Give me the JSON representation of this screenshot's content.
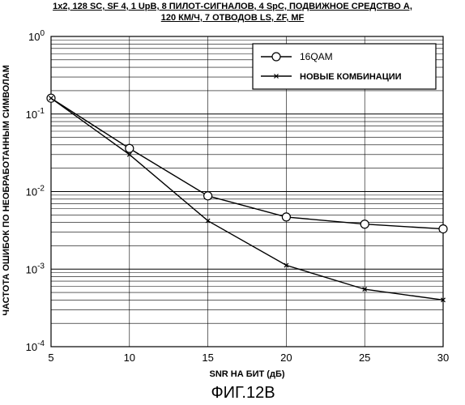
{
  "chart_data": {
    "type": "line",
    "title_line1": "1x2, 128 SC, SF 4, 1 UpB, 8 ПИЛОТ-СИГНАЛОВ, 4 SpC, ПОДВИЖНОЕ СРЕДСТВО A,",
    "title_line2": "120 КМ/Ч, 7 ОТВОДОВ LS, ZF, MF",
    "xlabel": "SNR НА БИТ (дБ)",
    "ylabel": "ЧАСТОТА ОШИБОК ПО НЕОБРАБОТАННЫМ СИМВОЛАМ",
    "xlim": [
      5,
      30
    ],
    "ylim": [
      0.0001,
      1
    ],
    "yscale": "log",
    "x_ticks": [
      "5",
      "10",
      "15",
      "20",
      "25",
      "30"
    ],
    "y_tick_bases": [
      "10",
      "10",
      "10",
      "10",
      "10"
    ],
    "y_tick_exponents": [
      "0",
      "-1",
      "-2",
      "-3",
      "-4"
    ],
    "grid": true,
    "legend_position": "top-right",
    "series": [
      {
        "name": "16QAM",
        "marker": "circle",
        "x": [
          5,
          10,
          15,
          20,
          25,
          30
        ],
        "y": [
          0.16,
          0.036,
          0.0088,
          0.0047,
          0.0038,
          0.0033
        ]
      },
      {
        "name": "НОВЫЕ КОМБИНАЦИИ",
        "marker": "x",
        "x": [
          5,
          10,
          15,
          20,
          25,
          30
        ],
        "y": [
          0.16,
          0.03,
          0.0042,
          0.00112,
          0.00055,
          0.0004
        ]
      }
    ]
  },
  "figure_label": "ФИГ.12B"
}
